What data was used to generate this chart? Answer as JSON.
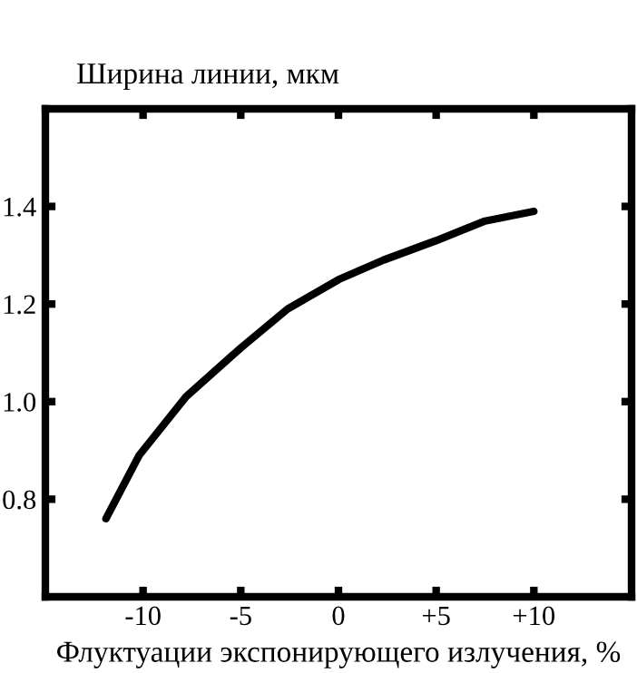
{
  "chart_data": {
    "type": "line",
    "title": "Ширина линии, мкм",
    "xlabel": "Флуктуации экспонирующего излучения, %",
    "x": [
      -11.9,
      -10.2,
      -7.8,
      -5.0,
      -2.6,
      0,
      2.3,
      5.0,
      7.5,
      10.0
    ],
    "series": [
      {
        "color": "#000000",
        "values": [
          0.76,
          0.89,
          1.01,
          1.11,
          1.19,
          1.25,
          1.29,
          1.33,
          1.37,
          1.39
        ]
      }
    ],
    "xlim": [
      -15,
      15
    ],
    "ylim": [
      0.6,
      1.6
    ],
    "xticks": [
      -10,
      -5,
      0,
      {
        "value": 5,
        "label": "+5"
      },
      {
        "value": 10,
        "label": "+10"
      }
    ],
    "yticks": [
      {
        "value": 0.8,
        "label": "0.8"
      },
      {
        "value": 1.0,
        "label": "1.0"
      },
      {
        "value": 1.2,
        "label": "1.2"
      },
      {
        "value": 1.4,
        "label": "1.4"
      }
    ],
    "grid": false,
    "marker": "none",
    "line_style": "solid"
  }
}
